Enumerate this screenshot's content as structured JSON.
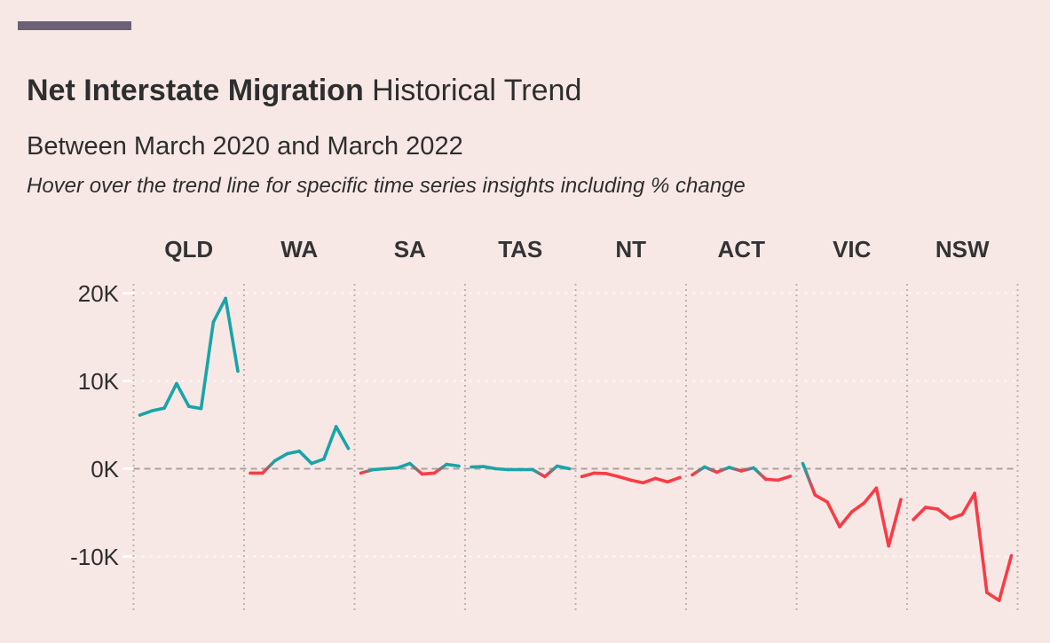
{
  "header": {
    "title_bold": "Net Interstate Migration",
    "title_rest": " Historical Trend",
    "subtitle": "Between March 2020 and March 2022",
    "note": "Hover over the trend line for specific time series insights including % change"
  },
  "colors": {
    "background": "#f7e8e6",
    "accent_bar": "#6b6076",
    "positive_line": "#18a4a8",
    "negative_line": "#fa3b44",
    "text": "#2e2e2e",
    "header_text": "#333333",
    "zero_line": "#a9a29d",
    "panel_separator": "#bcb5b1",
    "faint_grid": "#ffffff"
  },
  "chart_data": {
    "type": "line",
    "layout": "small-multiples",
    "title": "Net Interstate Migration Historical Trend",
    "subtitle": "Between March 2020 and March 2022",
    "unit": "thousands of people (K)",
    "x_range": [
      "March 2020",
      "March 2022"
    ],
    "points_per_series": 9,
    "xlabel": "",
    "ylabel": "",
    "ylim": [
      -17,
      21.3
    ],
    "grid": "dotted vertical panel separators, dashed zero line, faint white gridlines",
    "y_ticks": [
      {
        "label": "20K",
        "value": 20
      },
      {
        "label": "10K",
        "value": 10
      },
      {
        "label": "0K",
        "value": 0
      },
      {
        "label": "-10K",
        "value": -10
      }
    ],
    "color_encoding": {
      "positive": "teal",
      "negative": "red"
    },
    "series": [
      {
        "name": "QLD",
        "values": [
          6.1,
          6.6,
          6.9,
          9.7,
          7.1,
          6.85,
          16.7,
          19.4,
          11.1
        ]
      },
      {
        "name": "WA",
        "values": [
          -0.5,
          -0.5,
          0.9,
          1.7,
          2.0,
          0.6,
          1.1,
          4.8,
          2.3
        ]
      },
      {
        "name": "SA",
        "values": [
          -0.5,
          -0.1,
          0.0,
          0.1,
          0.6,
          -0.6,
          -0.5,
          0.5,
          0.3
        ]
      },
      {
        "name": "TAS",
        "values": [
          0.2,
          0.25,
          0.0,
          -0.1,
          -0.1,
          -0.1,
          -0.9,
          0.3,
          0.0
        ]
      },
      {
        "name": "NT",
        "values": [
          -0.9,
          -0.5,
          -0.55,
          -0.9,
          -1.3,
          -1.6,
          -1.1,
          -1.5,
          -1.0
        ]
      },
      {
        "name": "ACT",
        "values": [
          -0.7,
          0.2,
          -0.4,
          0.15,
          -0.25,
          0.1,
          -1.2,
          -1.3,
          -0.85
        ]
      },
      {
        "name": "VIC",
        "values": [
          0.6,
          -3.0,
          -3.8,
          -6.6,
          -4.9,
          -3.9,
          -2.2,
          -8.8,
          -3.5
        ]
      },
      {
        "name": "NSW",
        "values": [
          -5.8,
          -4.4,
          -4.6,
          -5.7,
          -5.2,
          -2.8,
          -14.1,
          -15.0,
          -9.9
        ]
      }
    ]
  }
}
